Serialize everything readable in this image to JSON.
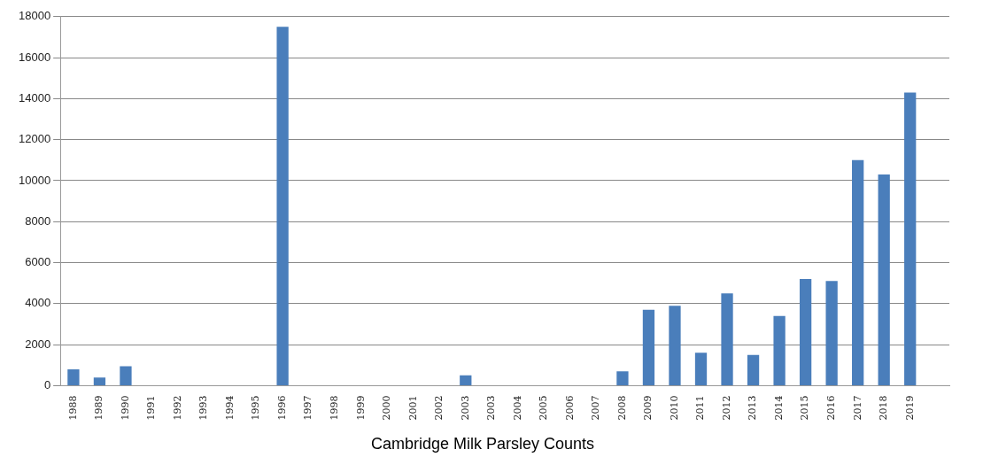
{
  "chart_data": {
    "type": "bar",
    "title": "Cambridge Milk Parsley Counts",
    "categories": [
      "1988",
      "1989",
      "1990",
      "1991",
      "1992",
      "1993",
      "1994",
      "1995",
      "1996",
      "1997",
      "1998",
      "1999",
      "2000",
      "2001",
      "2002",
      "2003",
      "2003",
      "2004",
      "2005",
      "2006",
      "2007",
      "2008",
      "2009",
      "2010",
      "2011",
      "2012",
      "2013",
      "2014",
      "2015",
      "2016",
      "2017",
      "2018",
      "2019",
      null
    ],
    "values": [
      800,
      400,
      950,
      0,
      0,
      0,
      0,
      0,
      17500,
      0,
      0,
      0,
      0,
      0,
      0,
      500,
      0,
      0,
      0,
      0,
      0,
      700,
      3700,
      3900,
      1600,
      4500,
      1500,
      3400,
      5200,
      5100,
      11000,
      10300,
      14300,
      null
    ],
    "color": "#4a7ebb",
    "ylim": [
      0,
      18000
    ],
    "yticks": [
      0,
      2000,
      4000,
      6000,
      8000,
      10000,
      12000,
      14000,
      16000,
      18000
    ],
    "grid": "y",
    "legend": false
  }
}
